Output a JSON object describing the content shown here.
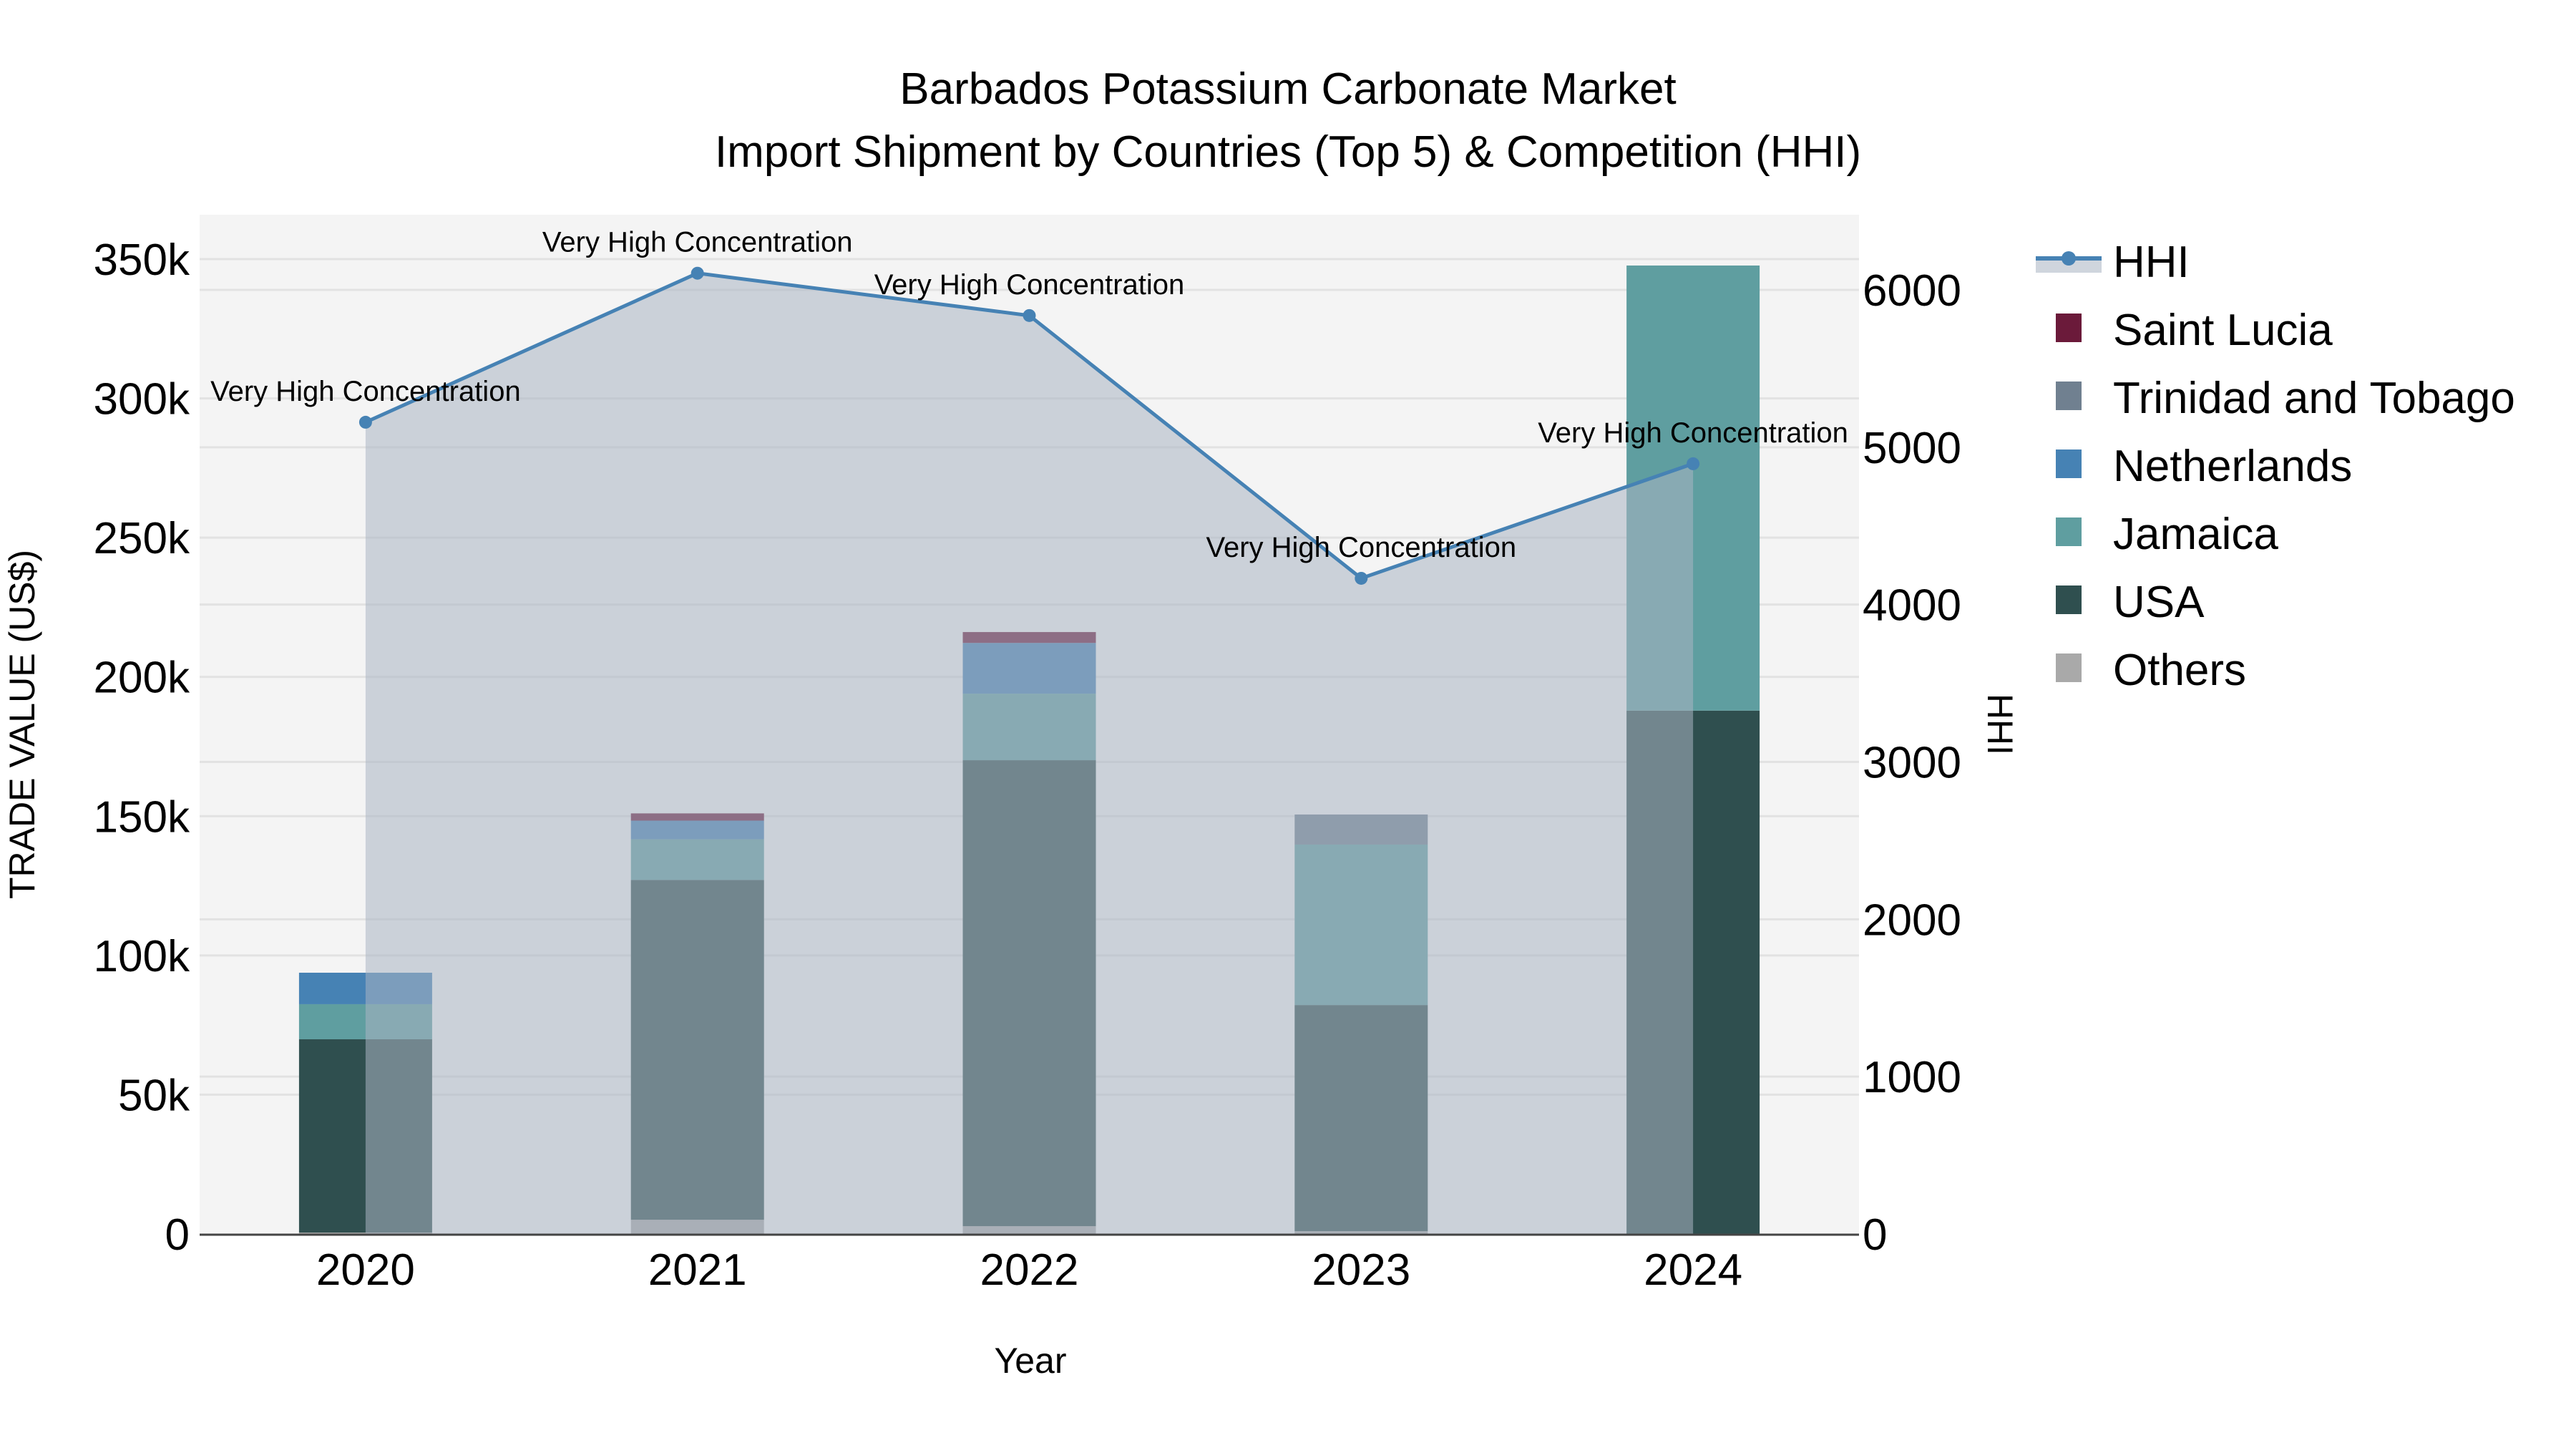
{
  "chart_data": {
    "type": "bar",
    "stacked": true,
    "title": "Barbados Potassium Carbonate Market",
    "subtitle": "Import Shipment by Countries (Top 5) & Competition (HHI)",
    "xlabel": "Year",
    "ylabel": "TRADE VALUE (US$)",
    "y2label": "HHI",
    "categories": [
      "2020",
      "2021",
      "2022",
      "2023",
      "2024"
    ],
    "ylim": [
      0,
      365000
    ],
    "y2lim": [
      0,
      6480
    ],
    "yticks": [
      0,
      50000,
      100000,
      150000,
      200000,
      250000,
      300000,
      350000
    ],
    "ytick_labels": [
      "0",
      "50k",
      "100k",
      "150k",
      "200k",
      "250k",
      "300k",
      "350k"
    ],
    "y2ticks": [
      0,
      1000,
      2000,
      3000,
      4000,
      5000,
      6000
    ],
    "y2tick_labels": [
      "0",
      "1000",
      "2000",
      "3000",
      "4000",
      "5000",
      "6000"
    ],
    "grid": true,
    "legend_position": "right",
    "series": [
      {
        "name": "Others",
        "color": "#a9a9a9",
        "values": [
          500,
          5100,
          2800,
          1000,
          0
        ]
      },
      {
        "name": "USA",
        "color": "#2f4f4f",
        "values": [
          69400,
          122000,
          167300,
          81200,
          187900
        ]
      },
      {
        "name": "Jamaica",
        "color": "#5f9ea0",
        "values": [
          12600,
          14600,
          23900,
          57600,
          159800
        ]
      },
      {
        "name": "Netherlands",
        "color": "#4682b4",
        "values": [
          11300,
          6700,
          18200,
          0,
          0
        ]
      },
      {
        "name": "Trinidad and Tobago",
        "color": "#708090",
        "values": [
          0,
          0,
          0,
          10800,
          0
        ]
      },
      {
        "name": "Saint Lucia",
        "color": "#6b1a3a",
        "values": [
          0,
          2600,
          3900,
          0,
          0
        ]
      }
    ],
    "line_series": {
      "name": "HHI",
      "axis": "y2",
      "color": "#4682b4",
      "fill_color": "rgba(170,180,195,0.55)",
      "values": [
        5159,
        6106,
        5837,
        4167,
        4895
      ],
      "annotations": [
        "Very High Concentration",
        "Very High Concentration",
        "Very High Concentration",
        "Very High Concentration",
        "Very High Concentration"
      ]
    }
  },
  "legend": {
    "items": [
      {
        "label": "HHI",
        "type": "line",
        "color": "#4682b4"
      },
      {
        "label": "Saint Lucia",
        "type": "box",
        "color": "#6b1a3a"
      },
      {
        "label": "Trinidad and Tobago",
        "type": "box",
        "color": "#708090"
      },
      {
        "label": "Netherlands",
        "type": "box",
        "color": "#4682b4"
      },
      {
        "label": "Jamaica",
        "type": "box",
        "color": "#5f9ea0"
      },
      {
        "label": "USA",
        "type": "box",
        "color": "#2f4f4f"
      },
      {
        "label": "Others",
        "type": "box",
        "color": "#a9a9a9"
      }
    ]
  },
  "colors": {
    "plot_bg": "#f4f4f4",
    "grid": "#e2e2e2",
    "axis_line": "#444444"
  }
}
